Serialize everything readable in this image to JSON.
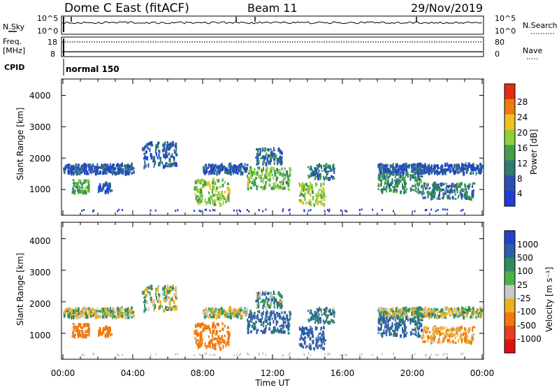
{
  "header": {
    "station": "Dome C East (fitACF)",
    "beam": "Beam 11",
    "date": "29/Nov/2019"
  },
  "strips": {
    "nsky_label": "N.Sky",
    "nsky_ticks": [
      "10^5",
      "10^0"
    ],
    "nsearch_label": "N.Search",
    "nsearch_ticks": [
      "10^5",
      "10^0"
    ],
    "freq_label_top": "Freq.",
    "freq_label_unit": "[MHz]",
    "freq_ticks": [
      "18",
      "8"
    ],
    "nave_label": "Nave",
    "nave_ticks": [
      "80",
      "0"
    ],
    "cpid_label": "CPID",
    "cpid_value": "normal 150"
  },
  "time_axis": {
    "ticks": [
      "00:00",
      "04:00",
      "08:00",
      "12:00",
      "16:00",
      "20:00",
      "00:00"
    ],
    "label": "Time UT"
  },
  "range_axis": {
    "label": "Slant Range [km]",
    "ticks": [
      "1000",
      "2000",
      "3000",
      "4000"
    ]
  },
  "power_scale": {
    "label": "Power [dB]",
    "ticks": [
      "4",
      "8",
      "12",
      "16",
      "20",
      "24",
      "28"
    ],
    "colors": [
      "#1f3ed8",
      "#2a4fb3",
      "#2f7a73",
      "#3ea04a",
      "#8fcf3a",
      "#f0c020",
      "#f07a10",
      "#e03010"
    ]
  },
  "velocity_scale": {
    "label": "Velocity [m s⁻¹]",
    "ticks": [
      "1000",
      "500",
      "100",
      "25",
      "-25",
      "-100",
      "-500",
      "-1000"
    ],
    "colors": [
      "#2840c8",
      "#2f5fa8",
      "#2f8a63",
      "#4cb04c",
      "#c9c8c4",
      "#f0b020",
      "#f07a10",
      "#e8401a",
      "#e01010"
    ]
  },
  "chart_data": {
    "type": "heatmap",
    "x_range": [
      "00:00",
      "24:00"
    ],
    "y_range_km": [
      200,
      4500
    ],
    "panels": [
      "Power",
      "Velocity"
    ],
    "echo_regions": [
      {
        "start": "00:00",
        "end": "04:00",
        "range_km": [
          1500,
          1800
        ],
        "power_db": 6,
        "velocity": 0
      },
      {
        "start": "00:30",
        "end": "01:30",
        "range_km": [
          900,
          1300
        ],
        "power_db": 14,
        "velocity": -300
      },
      {
        "start": "02:00",
        "end": "02:45",
        "range_km": [
          900,
          1200
        ],
        "power_db": 6,
        "velocity": -300
      },
      {
        "start": "04:30",
        "end": "06:30",
        "range_km": [
          1700,
          2500
        ],
        "power_db": 6,
        "velocity": 0
      },
      {
        "start": "07:30",
        "end": "09:30",
        "range_km": [
          500,
          1300
        ],
        "power_db": 18,
        "velocity": -200
      },
      {
        "start": "08:00",
        "end": "10:30",
        "range_km": [
          1500,
          1800
        ],
        "power_db": 6,
        "velocity": 0
      },
      {
        "start": "10:30",
        "end": "13:00",
        "range_km": [
          1000,
          1700
        ],
        "power_db": 16,
        "velocity": 150
      },
      {
        "start": "11:00",
        "end": "12:30",
        "range_km": [
          1800,
          2300
        ],
        "power_db": 8,
        "velocity": 50
      },
      {
        "start": "13:30",
        "end": "15:00",
        "range_km": [
          500,
          1200
        ],
        "power_db": 18,
        "velocity": 200
      },
      {
        "start": "14:00",
        "end": "15:30",
        "range_km": [
          1300,
          1800
        ],
        "power_db": 10,
        "velocity": 100
      },
      {
        "start": "18:00",
        "end": "24:00",
        "range_km": [
          1500,
          1800
        ],
        "power_db": 6,
        "velocity": 0
      },
      {
        "start": "18:00",
        "end": "20:30",
        "range_km": [
          900,
          1500
        ],
        "power_db": 12,
        "velocity": 150
      },
      {
        "start": "20:30",
        "end": "23:30",
        "range_km": [
          700,
          1200
        ],
        "power_db": 10,
        "velocity": -100
      }
    ]
  }
}
